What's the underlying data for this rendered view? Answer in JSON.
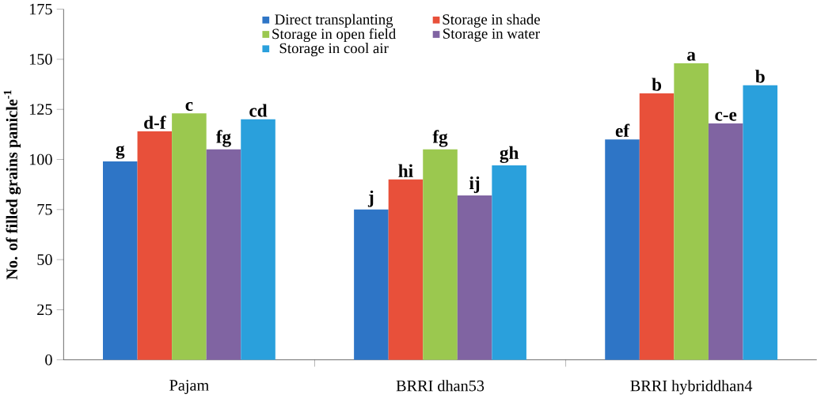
{
  "chart_data": {
    "type": "bar",
    "ylabel": "No. of filled grains panicle$^{-1}$",
    "categories": [
      "Pajam",
      "BRRI dhan53",
      "BRRI hybriddhan4"
    ],
    "series": [
      {
        "name": "Direct transplanting",
        "color": "#2e75c6",
        "values": [
          99,
          75,
          110
        ],
        "value_labels": [
          "g",
          "j",
          "ef"
        ]
      },
      {
        "name": "Storage in shade",
        "color": "#e8503a",
        "values": [
          114,
          90,
          133
        ],
        "value_labels": [
          "d-f",
          "hi",
          "b"
        ]
      },
      {
        "name": "Storage in open field",
        "color": "#9bc84f",
        "values": [
          123,
          105,
          148
        ],
        "value_labels": [
          "c",
          "fg",
          "a"
        ]
      },
      {
        "name": "Storage in water",
        "color": "#8064a2",
        "values": [
          105,
          82,
          118
        ],
        "value_labels": [
          "fg",
          "ij",
          "c-e"
        ]
      },
      {
        "name": "Storage in cool air",
        "color": "#2aa0dc",
        "values": [
          120,
          97,
          137
        ],
        "value_labels": [
          "cd",
          "gh",
          "b"
        ]
      }
    ],
    "ylim": [
      0,
      175
    ],
    "yticks": [
      0,
      25,
      50,
      75,
      100,
      125,
      150,
      175
    ],
    "legend": "top"
  }
}
